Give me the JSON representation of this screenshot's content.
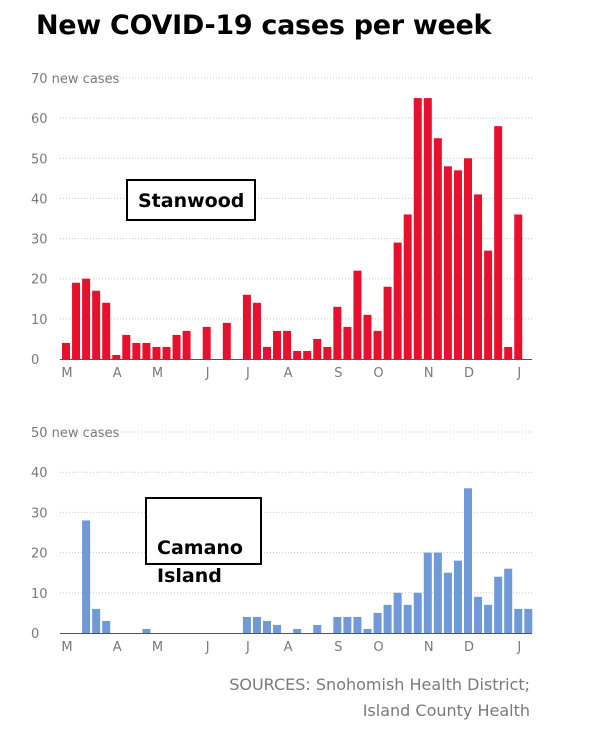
{
  "title": "New COVID-19 cases per week",
  "source": {
    "line1": "SOURCES: Snohomish Health District;",
    "line2": "Island County Health"
  },
  "chart_data": [
    {
      "type": "bar",
      "label": "Stanwood",
      "color": "#e8112d",
      "ylim": [
        0,
        70
      ],
      "yticks": [
        {
          "value": 0,
          "label": "0"
        },
        {
          "value": 10,
          "label": "10"
        },
        {
          "value": 20,
          "label": "20"
        },
        {
          "value": 30,
          "label": "30"
        },
        {
          "value": 40,
          "label": "40"
        },
        {
          "value": 50,
          "label": "50"
        },
        {
          "value": 60,
          "label": "60"
        },
        {
          "value": 70,
          "label": "70 new cases"
        }
      ],
      "month_ticks": [
        {
          "label": "M",
          "week_index": 0
        },
        {
          "label": "A",
          "week_index": 5
        },
        {
          "label": "M",
          "week_index": 9
        },
        {
          "label": "J",
          "week_index": 14
        },
        {
          "label": "J",
          "week_index": 18
        },
        {
          "label": "A",
          "week_index": 22
        },
        {
          "label": "S",
          "week_index": 27
        },
        {
          "label": "O",
          "week_index": 31
        },
        {
          "label": "N",
          "week_index": 36
        },
        {
          "label": "D",
          "week_index": 40
        },
        {
          "label": "J",
          "week_index": 45
        }
      ],
      "values": [
        4,
        19,
        20,
        17,
        14,
        1,
        6,
        4,
        4,
        3,
        3,
        6,
        7,
        0,
        8,
        0,
        9,
        0,
        16,
        14,
        3,
        7,
        7,
        2,
        2,
        5,
        3,
        13,
        8,
        22,
        11,
        7,
        18,
        29,
        36,
        65,
        65,
        55,
        48,
        47,
        50,
        41,
        27,
        58,
        3,
        36
      ]
    },
    {
      "type": "bar",
      "label": "Camano\nIsland",
      "color": "#7099d8",
      "ylim": [
        0,
        50
      ],
      "yticks": [
        {
          "value": 0,
          "label": "0"
        },
        {
          "value": 10,
          "label": "10"
        },
        {
          "value": 20,
          "label": "20"
        },
        {
          "value": 30,
          "label": "30"
        },
        {
          "value": 40,
          "label": "40"
        },
        {
          "value": 50,
          "label": "50 new cases"
        }
      ],
      "month_ticks": [
        {
          "label": "M",
          "week_index": 0
        },
        {
          "label": "A",
          "week_index": 5
        },
        {
          "label": "M",
          "week_index": 9
        },
        {
          "label": "J",
          "week_index": 14
        },
        {
          "label": "J",
          "week_index": 18
        },
        {
          "label": "A",
          "week_index": 22
        },
        {
          "label": "S",
          "week_index": 27
        },
        {
          "label": "O",
          "week_index": 31
        },
        {
          "label": "N",
          "week_index": 36
        },
        {
          "label": "D",
          "week_index": 40
        },
        {
          "label": "J",
          "week_index": 45
        }
      ],
      "values": [
        0,
        0,
        28,
        6,
        3,
        0,
        0,
        0,
        1,
        0,
        0,
        0,
        0,
        0,
        0,
        0,
        0,
        0,
        4,
        4,
        3,
        2,
        0,
        1,
        0,
        2,
        0,
        4,
        4,
        4,
        1,
        5,
        7,
        10,
        7,
        10,
        20,
        20,
        15,
        18,
        36,
        9,
        7,
        14,
        16,
        6,
        6
      ]
    }
  ]
}
